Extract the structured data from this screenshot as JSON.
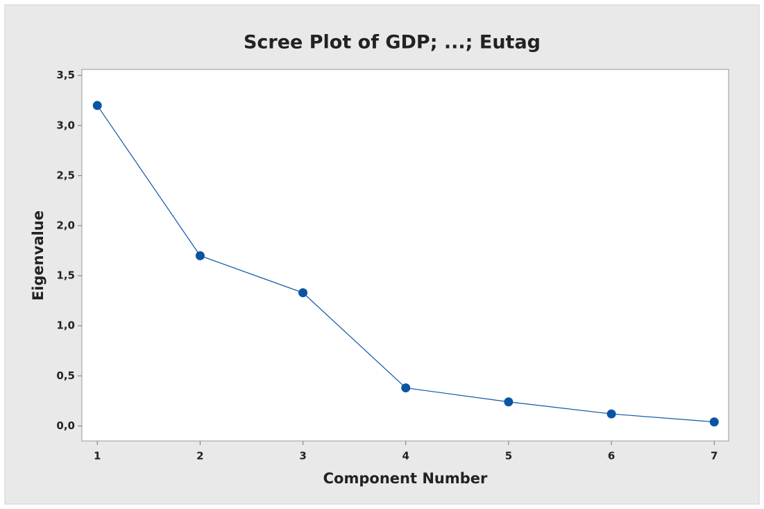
{
  "chart_data": {
    "type": "line",
    "title": "Scree Plot of GDP; ...; Eutag",
    "x_label": "Component Number",
    "y_label": "Eigenvalue",
    "x": [
      1,
      2,
      3,
      4,
      5,
      6,
      7
    ],
    "series": [
      {
        "color": "#0a55a3",
        "values": [
          3.2,
          1.7,
          1.33,
          0.38,
          0.24,
          0.12,
          0.04
        ]
      }
    ],
    "xlim": [
      0.85,
      7.14
    ],
    "xticks": [
      1,
      2,
      3,
      4,
      5,
      6,
      7
    ],
    "ylim": [
      -0.15,
      3.56
    ],
    "yticks": [
      {
        "value": 0,
        "label": "0,0"
      },
      {
        "value": 0.5,
        "label": "0,5"
      },
      {
        "value": 1,
        "label": "1,0"
      },
      {
        "value": 1.5,
        "label": "1,5"
      },
      {
        "value": 2,
        "label": "2,0"
      },
      {
        "value": 2.5,
        "label": "2,5"
      },
      {
        "value": 3,
        "label": "3,0"
      },
      {
        "value": 3.5,
        "label": "3,5"
      }
    ],
    "grid": false
  }
}
